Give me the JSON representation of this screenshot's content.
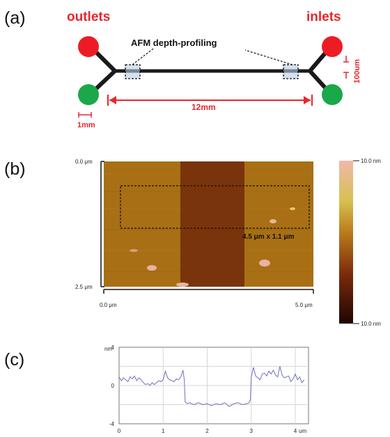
{
  "panels": {
    "a": "(a)",
    "b": "(b)",
    "c": "(c)"
  },
  "diagram": {
    "outlets_label": "outlets",
    "inlets_label": "inlets",
    "afm_label": "AFM depth-profiling",
    "length_label": "12mm",
    "port_size_label": "1mm",
    "width_label": "100um",
    "colors": {
      "red_port": "#ed1c24",
      "green_port": "#1aa84a",
      "channel": "#1a1a1a",
      "dim": "#e8262c"
    }
  },
  "afm_image": {
    "y_top_label": "0.0 μm",
    "y_bottom_label": "2.5 μm",
    "x_left_label": "0.0 μm",
    "x_right_label": "5.0 μm",
    "roi_label": "4.5 μm x 1.1 μm",
    "scale_top_label": "10.0 nm",
    "scale_bottom_label": "10.0 nm",
    "colors": {
      "substrate": "#a86f14",
      "channel": "#7a340c",
      "high": "#e8b4a0",
      "low": "#2a0a05"
    }
  },
  "chart_data": {
    "type": "line",
    "xlabel": "um",
    "ylabel": "nm",
    "xlim": [
      0,
      4.3
    ],
    "ylim": [
      -4,
      4
    ],
    "x_ticks": [
      "0",
      "1",
      "2",
      "3",
      "4"
    ],
    "y_ticks": [
      "4",
      "0",
      "-4"
    ],
    "grid": true,
    "line_color": "#6f6fbf",
    "series": [
      {
        "x": [
          0.0,
          0.05,
          0.1,
          0.15,
          0.2,
          0.25,
          0.3,
          0.35,
          0.4,
          0.45,
          0.5,
          0.55,
          0.6,
          0.65,
          0.7,
          0.75,
          0.8,
          0.85,
          0.9,
          0.95,
          1.0,
          1.05,
          1.1,
          1.15,
          1.2,
          1.25,
          1.3,
          1.35,
          1.4,
          1.45,
          1.48,
          1.5,
          1.55,
          1.6,
          1.7,
          1.8,
          1.9,
          2.0,
          2.1,
          2.2,
          2.3,
          2.4,
          2.5,
          2.6,
          2.7,
          2.8,
          2.9,
          2.95,
          2.98,
          3.0,
          3.05,
          3.1,
          3.15,
          3.2,
          3.25,
          3.3,
          3.35,
          3.4,
          3.45,
          3.5,
          3.55,
          3.6,
          3.65,
          3.7,
          3.75,
          3.8,
          3.85,
          3.9,
          3.95,
          4.0,
          4.05,
          4.1,
          4.15,
          4.2
        ],
        "y": [
          0.9,
          0.5,
          0.8,
          0.6,
          0.4,
          0.9,
          0.7,
          1.0,
          0.5,
          0.8,
          0.6,
          0.3,
          0.1,
          0.2,
          0.0,
          0.3,
          0.1,
          0.3,
          0.5,
          0.4,
          0.6,
          1.5,
          0.8,
          0.6,
          0.5,
          0.4,
          0.7,
          0.6,
          0.9,
          1.6,
          0.6,
          -1.7,
          -1.9,
          -1.8,
          -2.0,
          -1.8,
          -2.0,
          -1.9,
          -2.1,
          -1.9,
          -2.0,
          -1.8,
          -2.2,
          -1.9,
          -1.8,
          -2.0,
          -1.9,
          -1.8,
          -1.5,
          0.9,
          1.9,
          1.0,
          0.8,
          0.6,
          1.2,
          1.3,
          1.0,
          1.5,
          1.2,
          1.6,
          1.1,
          0.9,
          2.0,
          1.1,
          0.8,
          0.9,
          1.0,
          0.4,
          0.7,
          1.2,
          0.6,
          0.9,
          0.3,
          0.6
        ]
      }
    ]
  }
}
